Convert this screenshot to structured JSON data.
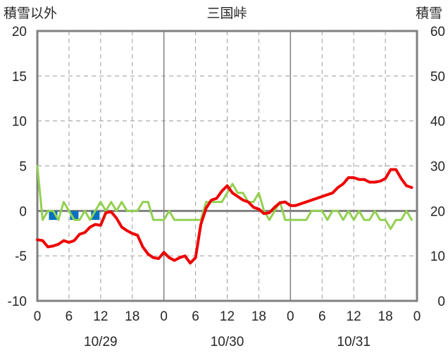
{
  "chart_data": {
    "type": "line",
    "title": "三国峠",
    "left_axis_label": "積雪以外",
    "right_axis_label": "積雪",
    "left_ylim": [
      -10,
      20
    ],
    "right_ylim": [
      0,
      60
    ],
    "left_ticks": [
      "20",
      "15",
      "10",
      "5",
      "0",
      "-5",
      "-10"
    ],
    "right_ticks": [
      "60",
      "50",
      "40",
      "30",
      "20",
      "10",
      "0"
    ],
    "x_ticks": [
      "0",
      "6",
      "12",
      "18",
      "0",
      "6",
      "12",
      "18",
      "0",
      "6",
      "12",
      "18",
      "0"
    ],
    "x_hours": [
      0,
      6,
      12,
      18,
      24,
      30,
      36,
      42,
      48,
      54,
      60,
      66,
      72
    ],
    "date_labels": [
      "10/29",
      "10/30",
      "10/31"
    ],
    "grid": true,
    "colors": {
      "temperature": "#ee0000",
      "wind": "#92d050",
      "precip": "#0070c0",
      "axis": "#808080",
      "zero": "#808080"
    },
    "series": [
      {
        "key": "temperature",
        "x": [
          0,
          1,
          2,
          3,
          4,
          5,
          6,
          7,
          8,
          9,
          10,
          11,
          12,
          13,
          14,
          15,
          16,
          17,
          18,
          19,
          20,
          21,
          22,
          23,
          24,
          25,
          26,
          27,
          28,
          29,
          30,
          31,
          32,
          33,
          34,
          35,
          36,
          37,
          38,
          39,
          40,
          41,
          42,
          43,
          44,
          45,
          46,
          47,
          48,
          49,
          50,
          51,
          52,
          53,
          54,
          55,
          56,
          57,
          58,
          59,
          60,
          61,
          62,
          63,
          64,
          65,
          66,
          67,
          68,
          69,
          70,
          71
        ],
        "values": [
          -3.2,
          -3.3,
          -4.0,
          -3.9,
          -3.7,
          -3.3,
          -3.5,
          -3.3,
          -2.6,
          -2.4,
          -1.8,
          -1.5,
          -1.6,
          -0.2,
          -0.1,
          -0.8,
          -1.8,
          -2.2,
          -2.5,
          -2.7,
          -4.0,
          -4.8,
          -5.2,
          -5.3,
          -4.6,
          -5.2,
          -5.5,
          -5.2,
          -5.0,
          -5.8,
          -5.2,
          -1.5,
          0.3,
          1.2,
          1.4,
          2.2,
          2.8,
          2.0,
          1.6,
          1.2,
          1.0,
          0.4,
          0.2,
          -0.3,
          -0.2,
          0.4,
          0.9,
          1.0,
          0.6,
          0.6,
          0.8,
          1.0,
          1.2,
          1.4,
          1.6,
          1.8,
          2.0,
          2.6,
          3.0,
          3.7,
          3.7,
          3.5,
          3.5,
          3.2,
          3.2,
          3.3,
          3.6,
          4.6,
          4.6,
          3.6,
          2.8,
          2.6
        ]
      },
      {
        "key": "wind",
        "x": [
          0,
          1,
          2,
          3,
          4,
          5,
          6,
          7,
          8,
          9,
          10,
          11,
          12,
          13,
          14,
          15,
          16,
          17,
          18,
          19,
          20,
          21,
          22,
          23,
          24,
          25,
          26,
          27,
          28,
          29,
          30,
          31,
          32,
          33,
          34,
          35,
          36,
          37,
          38,
          39,
          40,
          41,
          42,
          43,
          44,
          45,
          46,
          47,
          48,
          49,
          50,
          51,
          52,
          53,
          54,
          55,
          56,
          57,
          58,
          59,
          60,
          61,
          62,
          63,
          64,
          65,
          66,
          67,
          68,
          69,
          70,
          71
        ],
        "values": [
          5,
          -1,
          0,
          0,
          -1,
          1,
          0,
          -1,
          -1,
          0,
          -1,
          0,
          1,
          0,
          1,
          0,
          1,
          0,
          0,
          0,
          1,
          1,
          -1,
          -1,
          -1,
          0,
          -1,
          -1,
          -1,
          -1,
          -1,
          -1,
          1,
          1,
          1,
          1,
          2,
          3,
          2,
          2,
          1,
          1,
          2,
          0,
          -1,
          0,
          1,
          -1,
          -1,
          -1,
          -1,
          -1,
          0,
          0,
          0,
          -1,
          0,
          0,
          -1,
          0,
          -1,
          0,
          -1,
          -1,
          0,
          -1,
          -1,
          -2,
          -1,
          -1,
          0,
          -1
        ]
      }
    ],
    "precip_bars": {
      "x": [
        3,
        7,
        11
      ],
      "values": [
        -1,
        -1,
        -1
      ]
    }
  }
}
